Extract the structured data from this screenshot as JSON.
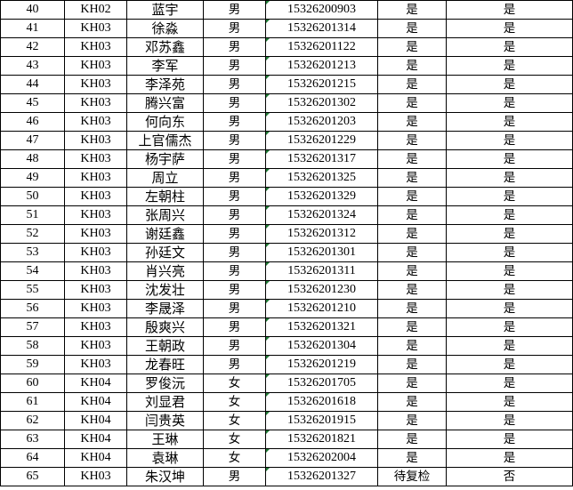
{
  "rows": [
    {
      "no": "40",
      "cls": "KH02",
      "name": "蓝宇",
      "gender": "男",
      "phone": "15326200903",
      "c6": "是",
      "c7": "是"
    },
    {
      "no": "41",
      "cls": "KH03",
      "name": "徐淼",
      "gender": "男",
      "phone": "15326201314",
      "c6": "是",
      "c7": "是"
    },
    {
      "no": "42",
      "cls": "KH03",
      "name": "邓苏鑫",
      "gender": "男",
      "phone": "15326201122",
      "c6": "是",
      "c7": "是"
    },
    {
      "no": "43",
      "cls": "KH03",
      "name": "李军",
      "gender": "男",
      "phone": "15326201213",
      "c6": "是",
      "c7": "是"
    },
    {
      "no": "44",
      "cls": "KH03",
      "name": "李泽苑",
      "gender": "男",
      "phone": "15326201215",
      "c6": "是",
      "c7": "是"
    },
    {
      "no": "45",
      "cls": "KH03",
      "name": "腾兴富",
      "gender": "男",
      "phone": "15326201302",
      "c6": "是",
      "c7": "是"
    },
    {
      "no": "46",
      "cls": "KH03",
      "name": "何向东",
      "gender": "男",
      "phone": "15326201203",
      "c6": "是",
      "c7": "是"
    },
    {
      "no": "47",
      "cls": "KH03",
      "name": "上官儒杰",
      "gender": "男",
      "phone": "15326201229",
      "c6": "是",
      "c7": "是"
    },
    {
      "no": "48",
      "cls": "KH03",
      "name": "杨宇萨",
      "gender": "男",
      "phone": "15326201317",
      "c6": "是",
      "c7": "是"
    },
    {
      "no": "49",
      "cls": "KH03",
      "name": "周立",
      "gender": "男",
      "phone": "15326201325",
      "c6": "是",
      "c7": "是"
    },
    {
      "no": "50",
      "cls": "KH03",
      "name": "左朝柱",
      "gender": "男",
      "phone": "15326201329",
      "c6": "是",
      "c7": "是"
    },
    {
      "no": "51",
      "cls": "KH03",
      "name": "张周兴",
      "gender": "男",
      "phone": "15326201324",
      "c6": "是",
      "c7": "是"
    },
    {
      "no": "52",
      "cls": "KH03",
      "name": "谢廷鑫",
      "gender": "男",
      "phone": "15326201312",
      "c6": "是",
      "c7": "是"
    },
    {
      "no": "53",
      "cls": "KH03",
      "name": "孙廷文",
      "gender": "男",
      "phone": "15326201301",
      "c6": "是",
      "c7": "是"
    },
    {
      "no": "54",
      "cls": "KH03",
      "name": "肖兴亮",
      "gender": "男",
      "phone": "15326201311",
      "c6": "是",
      "c7": "是"
    },
    {
      "no": "55",
      "cls": "KH03",
      "name": "沈发壮",
      "gender": "男",
      "phone": "15326201230",
      "c6": "是",
      "c7": "是"
    },
    {
      "no": "56",
      "cls": "KH03",
      "name": "李晟泽",
      "gender": "男",
      "phone": "15326201210",
      "c6": "是",
      "c7": "是"
    },
    {
      "no": "57",
      "cls": "KH03",
      "name": "殷爽兴",
      "gender": "男",
      "phone": "15326201321",
      "c6": "是",
      "c7": "是"
    },
    {
      "no": "58",
      "cls": "KH03",
      "name": "王朝政",
      "gender": "男",
      "phone": "15326201304",
      "c6": "是",
      "c7": "是"
    },
    {
      "no": "59",
      "cls": "KH03",
      "name": "龙春旺",
      "gender": "男",
      "phone": "15326201219",
      "c6": "是",
      "c7": "是"
    },
    {
      "no": "60",
      "cls": "KH04",
      "name": "罗俊沅",
      "gender": "女",
      "phone": "15326201705",
      "c6": "是",
      "c7": "是"
    },
    {
      "no": "61",
      "cls": "KH04",
      "name": "刘显君",
      "gender": "女",
      "phone": "15326201618",
      "c6": "是",
      "c7": "是"
    },
    {
      "no": "62",
      "cls": "KH04",
      "name": "闫贵英",
      "gender": "女",
      "phone": "15326201915",
      "c6": "是",
      "c7": "是"
    },
    {
      "no": "63",
      "cls": "KH04",
      "name": "王琳",
      "gender": "女",
      "phone": "15326201821",
      "c6": "是",
      "c7": "是"
    },
    {
      "no": "64",
      "cls": "KH04",
      "name": "袁琳",
      "gender": "女",
      "phone": "15326202004",
      "c6": "是",
      "c7": "是"
    },
    {
      "no": "65",
      "cls": "KH03",
      "name": "朱汉坤",
      "gender": "男",
      "phone": "15326201327",
      "c6": "待复检",
      "c7": "否"
    }
  ],
  "colors": {
    "error_marker": "#1e7b34",
    "grid": "#000000"
  }
}
